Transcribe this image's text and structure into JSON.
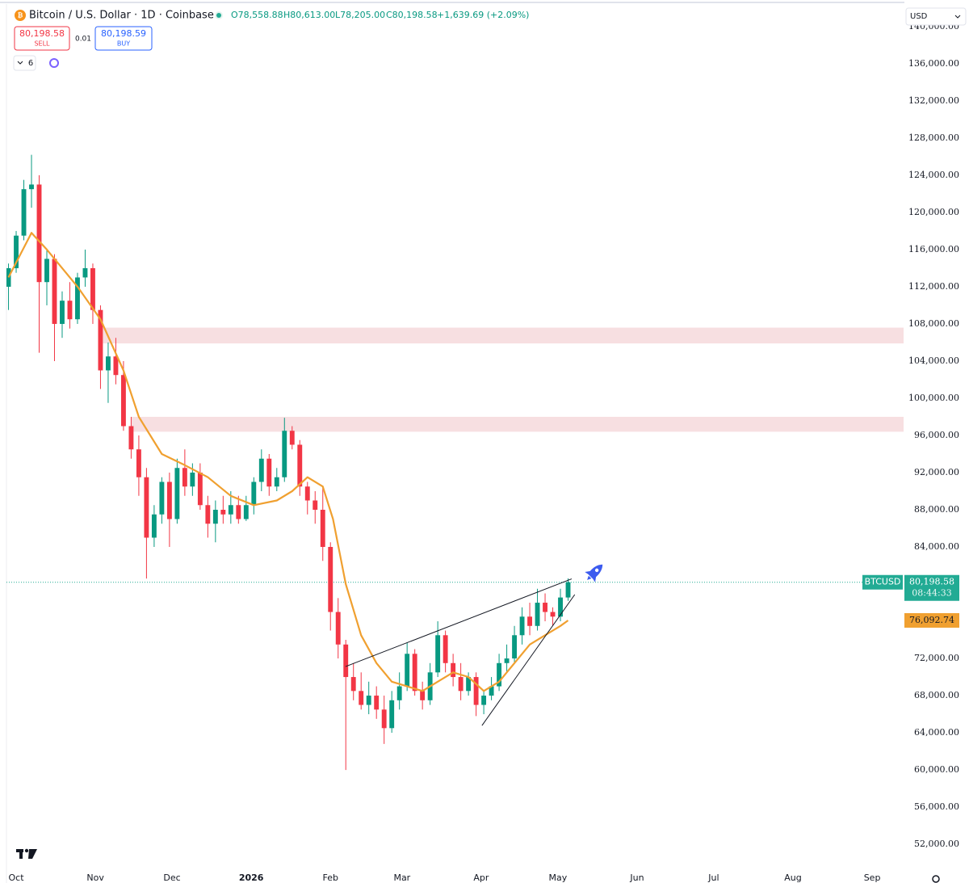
{
  "toolbar": {
    "sell_price": "80,198.58",
    "sell": "SELL",
    "spread": "0.01",
    "buy_price": "80,198.59",
    "buy": "BUY",
    "indicators": "6",
    "currency": "USD"
  },
  "chart_data": {
    "type": "candlestick",
    "title": "Bitcoin / U.S. Dollar · 1D · Coinbase",
    "ohlc_legend": {
      "open": "O78,558.88",
      "high": "H80,613.00",
      "low": "L78,205.00",
      "close": "C80,198.58",
      "change": "+1,639.69 (+2.09%)"
    },
    "symbol": "BTCUSD",
    "up_color": "#089981",
    "down_color": "#f23645",
    "x": [
      -3,
      0,
      3,
      6,
      9,
      12,
      15,
      18,
      21,
      24,
      27,
      30,
      33,
      36,
      39,
      42,
      45,
      48,
      51,
      54,
      57,
      60,
      63,
      66,
      69,
      72,
      75,
      78,
      81,
      84,
      87,
      90,
      93,
      96,
      99,
      102,
      105,
      108,
      111,
      114,
      117,
      120,
      123,
      126,
      129,
      132,
      135,
      138,
      141,
      144,
      147,
      150,
      153,
      156,
      159,
      162,
      165,
      168,
      171,
      174,
      177,
      180,
      183,
      186,
      189,
      192,
      195,
      198,
      201,
      204,
      207,
      210,
      213,
      216
    ],
    "open": [
      112000,
      114000,
      117500,
      122500,
      123000,
      112500,
      115000,
      108000,
      110500,
      108500,
      113000,
      114000,
      109500,
      103000,
      104500,
      102500,
      97000,
      94500,
      91500,
      85000,
      87500,
      91000,
      87000,
      92500,
      90500,
      92000,
      88500,
      86500,
      88000,
      87500,
      88500,
      87000,
      88500,
      91000,
      93500,
      90500,
      91500,
      96500,
      95000,
      90500,
      89000,
      88000,
      84000,
      77000,
      73500,
      70000,
      68500,
      67000,
      68000,
      66500,
      64500,
      67500,
      69000,
      72500,
      68500,
      67500,
      70500,
      74500,
      71500,
      70000,
      68500,
      70000,
      67000,
      68000,
      69000,
      71500,
      72000,
      74500,
      76500,
      75500,
      78000,
      77000,
      76500,
      78558.88
    ],
    "high": [
      114500,
      118000,
      123500,
      126200,
      124000,
      116000,
      115500,
      111500,
      112500,
      113500,
      116000,
      114500,
      110000,
      106000,
      106500,
      104000,
      98000,
      96000,
      92500,
      88500,
      91500,
      92000,
      93500,
      94500,
      93000,
      93000,
      89500,
      89000,
      89500,
      90000,
      89500,
      89500,
      91500,
      94500,
      94000,
      92500,
      97900,
      97000,
      95500,
      91000,
      90000,
      90500,
      84500,
      78500,
      74000,
      71500,
      70500,
      69500,
      69000,
      68000,
      68500,
      70500,
      73700,
      73000,
      69500,
      71500,
      76000,
      75000,
      72500,
      71500,
      70500,
      70500,
      68500,
      70000,
      72500,
      73500,
      75500,
      77500,
      78000,
      79500,
      79000,
      77500,
      79500,
      80613
    ],
    "low": [
      109500,
      113500,
      117000,
      120500,
      104900,
      110000,
      104000,
      106500,
      107500,
      108000,
      112000,
      108000,
      101000,
      99500,
      101500,
      96500,
      93500,
      89500,
      80600,
      84000,
      86500,
      84000,
      86500,
      89500,
      89500,
      88000,
      85000,
      84500,
      86500,
      86500,
      86500,
      86800,
      87500,
      90000,
      89500,
      90000,
      91000,
      94500,
      89500,
      87500,
      86500,
      82500,
      75000,
      72000,
      60000,
      67500,
      66500,
      66000,
      65500,
      62800,
      64000,
      66500,
      68500,
      68000,
      66500,
      67000,
      70000,
      70500,
      69000,
      67500,
      68000,
      65800,
      66000,
      67500,
      68500,
      70500,
      71500,
      73500,
      74500,
      75000,
      76000,
      75500,
      76000,
      78205
    ],
    "close": [
      114000,
      117500,
      122500,
      123000,
      112500,
      115000,
      108000,
      110500,
      108500,
      113000,
      114000,
      109500,
      103000,
      104500,
      102500,
      97000,
      94500,
      91500,
      85000,
      87500,
      91000,
      87000,
      92500,
      90500,
      92000,
      88500,
      86500,
      88000,
      87500,
      88500,
      87000,
      88500,
      91000,
      93500,
      90500,
      91500,
      96500,
      95000,
      90500,
      89000,
      88000,
      84000,
      77000,
      73500,
      70000,
      68500,
      67000,
      68000,
      66500,
      64500,
      67500,
      69000,
      72500,
      68500,
      67500,
      70500,
      74500,
      71500,
      70000,
      68500,
      70000,
      67000,
      68000,
      69000,
      71500,
      72000,
      74500,
      76500,
      75500,
      78000,
      77000,
      76500,
      78558.88,
      80198.58
    ],
    "last_price": {
      "value": 80198.58,
      "label": "80,198.58",
      "countdown": "08:44:33",
      "color": "#22ab94"
    },
    "moving_average": {
      "color": "#f0a030",
      "x": [
        -3,
        6,
        12,
        24,
        33,
        42,
        48,
        57,
        66,
        75,
        84,
        93,
        102,
        108,
        114,
        120,
        124,
        129,
        135,
        141,
        147,
        153,
        159,
        165,
        171,
        177,
        183,
        189,
        195,
        201,
        207,
        213,
        216
      ],
      "values": [
        113000,
        117800,
        116000,
        112000,
        108500,
        103000,
        98000,
        94000,
        92800,
        91500,
        89500,
        88500,
        89000,
        90000,
        91500,
        90500,
        87000,
        80000,
        74500,
        71500,
        69500,
        69000,
        68500,
        69500,
        70500,
        70000,
        68500,
        69500,
        71500,
        73500,
        74500,
        75500,
        76092.74
      ],
      "value": 76092.74,
      "label": "76,092.74"
    },
    "zones": [
      {
        "x": 34,
        "y": [
          105900,
          107600
        ],
        "color": "#f7dfe1"
      },
      {
        "x": 45,
        "y": [
          96400,
          98000
        ],
        "color": "#f7dfe1"
      }
    ],
    "trendlines": [
      {
        "x": [
          128.9,
          217.4
        ],
        "y": [
          71130,
          80560
        ]
      },
      {
        "x": [
          182.3,
          218.6
        ],
        "y": [
          64780,
          78870
        ]
      }
    ],
    "xlim": [
      -3.8,
      347.3
    ],
    "ylim": [
      49400,
      140250
    ],
    "xticks": [
      {
        "value": 0,
        "label": "Oct"
      },
      {
        "value": 31,
        "label": "Nov"
      },
      {
        "value": 61,
        "label": "Dec"
      },
      {
        "value": 92,
        "label": "2026"
      },
      {
        "value": 123,
        "label": "Feb"
      },
      {
        "value": 151,
        "label": "Mar"
      },
      {
        "value": 182,
        "label": "Apr"
      },
      {
        "value": 212,
        "label": "May"
      },
      {
        "value": 243,
        "label": "Jun"
      },
      {
        "value": 273,
        "label": "Jul"
      },
      {
        "value": 304,
        "label": "Aug"
      },
      {
        "value": 335,
        "label": "Sep"
      }
    ],
    "yticks": [
      {
        "value": 52000,
        "label": "52,000.00"
      },
      {
        "value": 56000,
        "label": "56,000.00"
      },
      {
        "value": 60000,
        "label": "60,000.00"
      },
      {
        "value": 64000,
        "label": "64,000.00"
      },
      {
        "value": 68000,
        "label": "68,000.00"
      },
      {
        "value": 72000,
        "label": "72,000.00"
      },
      {
        "value": 76000,
        "label": "76,000.00"
      },
      {
        "value": 80000,
        "label": "80,000.00"
      },
      {
        "value": 84000,
        "label": "84,000.00"
      },
      {
        "value": 88000,
        "label": "88,000.00"
      },
      {
        "value": 92000,
        "label": "92,000.00"
      },
      {
        "value": 96000,
        "label": "96,000.00"
      },
      {
        "value": 100000,
        "label": "100,000.00"
      },
      {
        "value": 104000,
        "label": "104,000.00"
      },
      {
        "value": 108000,
        "label": "108,000.00"
      },
      {
        "value": 112000,
        "label": "112,000.00"
      },
      {
        "value": 116000,
        "label": "116,000.00"
      },
      {
        "value": 120000,
        "label": "120,000.00"
      },
      {
        "value": 124000,
        "label": "124,000.00"
      },
      {
        "value": 128000,
        "label": "128,000.00"
      },
      {
        "value": 132000,
        "label": "132,000.00"
      },
      {
        "value": 136000,
        "label": "136,000.00"
      },
      {
        "value": 140000,
        "label": "140,000.00"
      }
    ],
    "grid": false
  }
}
